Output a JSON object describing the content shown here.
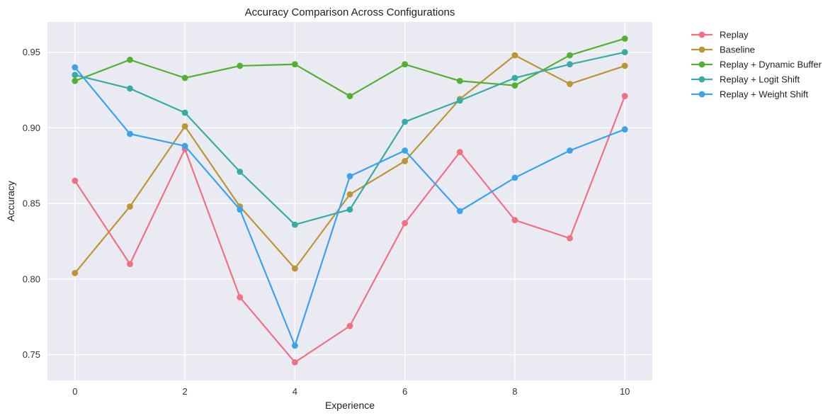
{
  "chart_data": {
    "type": "line",
    "title": "Accuracy Comparison Across Configurations",
    "xlabel": "Experience",
    "ylabel": "Accuracy",
    "xlim": [
      -0.5,
      10.5
    ],
    "ylim": [
      0.733,
      0.97
    ],
    "xticks": [
      0,
      2,
      4,
      6,
      8,
      10
    ],
    "xtick_labels": [
      "0",
      "2",
      "4",
      "6",
      "8",
      "10"
    ],
    "yticks": [
      0.75,
      0.8,
      0.85,
      0.9,
      0.95
    ],
    "ytick_labels": [
      "0.75",
      "0.80",
      "0.85",
      "0.90",
      "0.95"
    ],
    "grid": true,
    "legend_position": "outside-top-right",
    "x": [
      0,
      1,
      2,
      3,
      4,
      5,
      6,
      7,
      8,
      9,
      10
    ],
    "series": [
      {
        "name": "Replay",
        "color": "#f07084",
        "values": [
          0.865,
          0.81,
          0.886,
          0.788,
          0.745,
          0.769,
          0.837,
          0.884,
          0.839,
          0.827,
          0.921
        ]
      },
      {
        "name": "Baseline",
        "color": "#bb9635",
        "values": [
          0.804,
          0.848,
          0.901,
          0.848,
          0.807,
          0.856,
          0.878,
          0.919,
          0.948,
          0.929,
          0.941
        ]
      },
      {
        "name": "Replay + Dynamic Buffer",
        "color": "#52b132",
        "values": [
          0.931,
          0.945,
          0.933,
          0.941,
          0.942,
          0.921,
          0.942,
          0.931,
          0.928,
          0.948,
          0.959
        ]
      },
      {
        "name": "Replay + Logit Shift",
        "color": "#36ada4",
        "values": [
          0.935,
          0.926,
          0.91,
          0.871,
          0.836,
          0.846,
          0.904,
          0.918,
          0.933,
          0.942,
          0.95
        ]
      },
      {
        "name": "Replay + Weight Shift",
        "color": "#3ba3ec",
        "values": [
          0.94,
          0.896,
          0.888,
          0.846,
          0.756,
          0.868,
          0.885,
          0.845,
          0.867,
          0.885,
          0.899
        ]
      }
    ]
  }
}
